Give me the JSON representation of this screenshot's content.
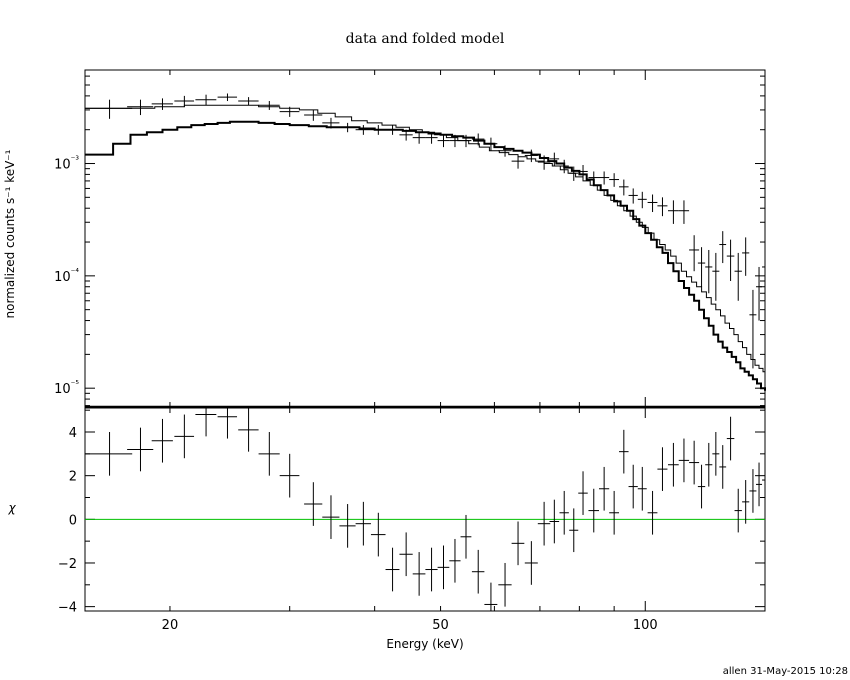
{
  "chart_data": [
    {
      "type": "scatter",
      "panel": "spectrum",
      "title": "data and folded model",
      "ylabel": "normalized counts s⁻¹ keV⁻¹",
      "yscale": "log",
      "xscale": "log",
      "xlim": [
        15,
        150
      ],
      "ylim": [
        6.8e-06,
        0.0068
      ],
      "ytick_labels": [
        "10⁻⁵",
        "10⁻⁴",
        "10⁻³"
      ],
      "ytick_values": [
        1e-05,
        0.0001,
        0.001
      ],
      "series": [
        {
          "style": "errorbars",
          "x": [
            16.3,
            18.1,
            19.5,
            21.0,
            22.6,
            24.3,
            26.1,
            28.0,
            30.0,
            32.5,
            34.5,
            36.5,
            38.5,
            40.5,
            42.5,
            44.5,
            46.5,
            48.5,
            50.5,
            52.5,
            54.5,
            56.8,
            59.3,
            62.2,
            65.0,
            68.0,
            71.0,
            73.5,
            76.0,
            78.5,
            81.0,
            84.0,
            87.0,
            90.0,
            93.0,
            96.0,
            99.0,
            102.5,
            106.0,
            110.0,
            114.0,
            118.0,
            121.0,
            124.0,
            127.0,
            130.0,
            133.5,
            137.0,
            140.5,
            144.0,
            147.0,
            150.0
          ],
          "y": [
            0.0031,
            0.0032,
            0.0034,
            0.0036,
            0.0037,
            0.0039,
            0.0036,
            0.0033,
            0.0029,
            0.0027,
            0.0023,
            0.0021,
            0.002,
            0.002,
            0.002,
            0.0018,
            0.0017,
            0.0017,
            0.0016,
            0.0016,
            0.0016,
            0.00165,
            0.0015,
            0.0013,
            0.00105,
            0.00118,
            0.00103,
            0.0011,
            0.00095,
            0.00082,
            0.00085,
            0.00075,
            0.00075,
            0.00072,
            0.00062,
            0.00052,
            0.00048,
            0.00045,
            0.00042,
            0.00038,
            0.00038,
            0.00017,
            0.00013,
            0.00012,
            0.00011,
            0.00019,
            0.00015,
            0.00011,
            0.00016,
            4.5e-05,
            8e-05,
            0.00012
          ],
          "xerr_low": [
            1.3,
            0.8,
            0.7,
            0.7,
            0.8,
            0.8,
            0.9,
            1.0,
            1.0,
            1.0,
            1.0,
            1.0,
            1.0,
            1.0,
            1.0,
            1.0,
            1.0,
            1.0,
            1.0,
            1.0,
            1.0,
            1.2,
            1.3,
            1.4,
            1.4,
            1.5,
            1.5,
            1.2,
            1.2,
            1.2,
            1.3,
            1.5,
            1.5,
            1.5,
            1.5,
            1.5,
            1.5,
            1.7,
            1.8,
            2.0,
            2.0,
            2.0,
            1.5,
            1.5,
            1.5,
            1.5,
            1.7,
            1.7,
            1.7,
            1.7,
            1.5,
            1.5
          ],
          "xerr_high": [
            1.3,
            0.8,
            0.7,
            0.7,
            0.8,
            0.8,
            0.9,
            1.0,
            1.0,
            1.0,
            1.0,
            1.0,
            1.0,
            1.0,
            1.0,
            1.0,
            1.0,
            1.0,
            1.0,
            1.0,
            1.0,
            1.2,
            1.3,
            1.4,
            1.4,
            1.5,
            1.5,
            1.2,
            1.2,
            1.2,
            1.3,
            1.5,
            1.5,
            1.5,
            1.5,
            1.5,
            1.5,
            1.7,
            1.8,
            2.0,
            2.0,
            2.0,
            1.5,
            1.5,
            1.5,
            1.5,
            1.7,
            1.7,
            1.7,
            1.7,
            1.5,
            1.5
          ],
          "yerr_low": [
            0.0006,
            0.0005,
            0.0004,
            0.0004,
            0.0004,
            0.0003,
            0.0003,
            0.0003,
            0.0003,
            0.0003,
            0.00025,
            0.0002,
            0.0002,
            0.0002,
            0.0002,
            0.0002,
            0.0002,
            0.0002,
            0.0002,
            0.0002,
            0.0002,
            0.0002,
            0.0002,
            0.00015,
            0.00015,
            0.00015,
            0.00015,
            0.00015,
            0.00013,
            0.00012,
            0.00012,
            0.0001,
            0.0001,
            0.0001,
            0.0001,
            8e-05,
            8e-05,
            8e-05,
            8e-05,
            9e-05,
            9e-05,
            6e-05,
            5e-05,
            5e-05,
            5e-05,
            6e-05,
            6e-05,
            5e-05,
            6e-05,
            3e-05,
            4e-05,
            5e-05
          ],
          "yerr_high": [
            0.0006,
            0.0005,
            0.0004,
            0.0004,
            0.0004,
            0.0003,
            0.0003,
            0.0003,
            0.0003,
            0.0003,
            0.00025,
            0.0002,
            0.0002,
            0.0002,
            0.0002,
            0.0002,
            0.0002,
            0.0002,
            0.0002,
            0.0002,
            0.0002,
            0.0002,
            0.0002,
            0.00015,
            0.00015,
            0.00015,
            0.00015,
            0.00015,
            0.00013,
            0.00012,
            0.00012,
            0.0001,
            0.0001,
            0.0001,
            0.0001,
            8e-05,
            8e-05,
            8e-05,
            8e-05,
            9e-05,
            9e-05,
            6e-05,
            5e-05,
            5e-05,
            5e-05,
            6e-05,
            6e-05,
            5e-05,
            6e-05,
            3e-05,
            4e-05,
            5e-05
          ]
        },
        {
          "style": "step",
          "x": [
            15.0,
            16.5,
            17.5,
            18.5,
            19.5,
            20.5,
            21.5,
            22.5,
            23.5,
            24.5,
            25.5,
            27.0,
            28.5,
            30.0,
            32.0,
            34.0,
            36.0,
            38.0,
            40.0,
            42.0,
            44.0,
            46.0,
            48.0,
            50.0,
            52.0,
            54.0,
            56.0,
            58.0,
            60.0,
            62.0,
            64.0,
            66.0,
            68.0,
            70.0,
            72.0,
            74.0,
            76.0,
            78.0,
            80.0,
            82.0,
            84.0,
            86.0,
            88.0,
            90.0,
            92.0,
            94.0,
            96.0,
            98.0,
            100.0,
            102.0,
            104.0,
            106.0,
            108.0,
            110.0,
            112.0,
            114.0,
            116.0,
            118.0,
            120.0,
            122.0,
            124.0,
            126.0,
            128.0,
            130.0,
            132.0,
            134.0,
            136.0,
            138.0,
            140.0,
            142.0,
            144.0,
            146.0,
            148.0,
            150.0
          ],
          "y": [
            0.0012,
            0.0015,
            0.0018,
            0.0019,
            0.002,
            0.0021,
            0.0022,
            0.00225,
            0.0023,
            0.00235,
            0.00235,
            0.0023,
            0.00225,
            0.0022,
            0.00215,
            0.0021,
            0.0021,
            0.00205,
            0.002,
            0.002,
            0.00195,
            0.0019,
            0.00185,
            0.0018,
            0.00175,
            0.0017,
            0.0016,
            0.0015,
            0.0014,
            0.00135,
            0.0013,
            0.00125,
            0.0012,
            0.00112,
            0.00105,
            0.001,
            0.00092,
            0.00086,
            0.0008,
            0.00072,
            0.00064,
            0.00058,
            0.00052,
            0.00046,
            0.00042,
            0.00038,
            0.00032,
            0.00028,
            0.00024,
            0.00021,
            0.00018,
            0.00016,
            0.00013,
            0.00011,
            9e-05,
            7.8e-05,
            6.8e-05,
            6e-05,
            5e-05,
            4.2e-05,
            3.6e-05,
            3e-05,
            2.6e-05,
            2.3e-05,
            2.1e-05,
            1.9e-05,
            1.7e-05,
            1.5e-05,
            1.4e-05,
            1.3e-05,
            1.2e-05,
            1.1e-05,
            1e-05,
            9.5e-06
          ]
        },
        {
          "style": "step-thin",
          "x": [
            15.0,
            17.0,
            19.0,
            21.0,
            23.0,
            25.0,
            27.0,
            29.0,
            31.0,
            33.0,
            35.0,
            37.0,
            39.0,
            41.0,
            43.0,
            45.0,
            47.0,
            49.0,
            51.0,
            53.0,
            55.0,
            57.0,
            59.0,
            61.0,
            63.0,
            65.0,
            67.0,
            69.0,
            71.0,
            73.0,
            75.0,
            77.0,
            79.0,
            81.0,
            83.0,
            85.0,
            87.0,
            89.0,
            91.0,
            93.0,
            95.0,
            97.0,
            99.0,
            101.0,
            103.0,
            105.0,
            107.0,
            109.0,
            111.0,
            113.0,
            115.0,
            117.0,
            119.0,
            121.0,
            123.0,
            125.0,
            127.0,
            129.0,
            131.0,
            133.0,
            135.0,
            137.0,
            139.0,
            141.0,
            143.0,
            145.0,
            147.0,
            149.0,
            150.0
          ],
          "y": [
            0.0031,
            0.0031,
            0.0032,
            0.0033,
            0.0033,
            0.0033,
            0.0032,
            0.0031,
            0.003,
            0.0028,
            0.0026,
            0.0024,
            0.0023,
            0.0022,
            0.0021,
            0.002,
            0.0019,
            0.0018,
            0.0017,
            0.0016,
            0.0015,
            0.0014,
            0.0013,
            0.00125,
            0.0012,
            0.00115,
            0.0011,
            0.00105,
            0.001,
            0.00095,
            0.00088,
            0.00082,
            0.00076,
            0.0007,
            0.00064,
            0.00058,
            0.00052,
            0.00047,
            0.00042,
            0.00038,
            0.00034,
            0.0003,
            0.00027,
            0.00024,
            0.00021,
            0.00019,
            0.00017,
            0.00015,
            0.00013,
            0.00011,
            9.8e-05,
            8.8e-05,
            8e-05,
            7.2e-05,
            6.4e-05,
            5.6e-05,
            5e-05,
            4.4e-05,
            3.8e-05,
            3.4e-05,
            3e-05,
            2.6e-05,
            2.3e-05,
            2e-05,
            1.8e-05,
            1.6e-05,
            1.5e-05,
            1.4e-05,
            1.3e-05
          ]
        }
      ]
    },
    {
      "type": "scatter",
      "panel": "residuals",
      "xlabel": "Energy (keV)",
      "ylabel": "χ",
      "xscale": "log",
      "xlim": [
        15,
        150
      ],
      "ylim": [
        -4.2,
        5.1
      ],
      "xtick_labels": [
        "20",
        "50",
        "100"
      ],
      "xtick_values": [
        20,
        50,
        100
      ],
      "ytick_labels": [
        "−4",
        "−2",
        "0",
        "2",
        "4"
      ],
      "ytick_values": [
        -4,
        -2,
        0,
        2,
        4
      ],
      "zero_line_color": "#00c000",
      "series": [
        {
          "style": "errorbars",
          "x": [
            16.3,
            18.1,
            19.5,
            21.0,
            22.6,
            24.3,
            26.1,
            28.0,
            30.0,
            32.5,
            34.5,
            36.5,
            38.5,
            40.5,
            42.5,
            44.5,
            46.5,
            48.5,
            50.5,
            52.5,
            54.5,
            56.8,
            59.3,
            62.2,
            65.0,
            68.0,
            71.0,
            73.5,
            76.0,
            78.5,
            81.0,
            84.0,
            87.0,
            90.0,
            93.0,
            96.0,
            99.0,
            102.5,
            106.0,
            110.0,
            114.0,
            118.0,
            121.0,
            124.0,
            127.0,
            130.0,
            133.5,
            137.0,
            140.5,
            144.0,
            147.0,
            150.0
          ],
          "y": [
            3.0,
            3.2,
            3.6,
            3.8,
            4.8,
            4.7,
            4.1,
            3.0,
            2.0,
            0.7,
            0.1,
            -0.3,
            -0.2,
            -0.7,
            -2.3,
            -1.6,
            -2.5,
            -2.3,
            -2.2,
            -1.9,
            -0.8,
            -2.4,
            -3.9,
            -3.0,
            -1.1,
            -2.0,
            -0.2,
            -0.1,
            0.3,
            -0.5,
            1.2,
            0.4,
            1.4,
            0.3,
            3.1,
            1.5,
            1.4,
            0.3,
            2.3,
            2.5,
            2.7,
            2.6,
            1.5,
            2.5,
            3.0,
            2.4,
            3.7,
            0.4,
            0.8,
            1.3,
            1.6,
            1.8
          ],
          "xerr_low": [
            1.3,
            0.8,
            0.7,
            0.7,
            0.8,
            0.8,
            0.9,
            1.0,
            1.0,
            1.0,
            1.0,
            1.0,
            1.0,
            1.0,
            1.0,
            1.0,
            1.0,
            1.0,
            1.0,
            1.0,
            1.0,
            1.2,
            1.3,
            1.4,
            1.4,
            1.5,
            1.5,
            1.2,
            1.2,
            1.2,
            1.3,
            1.5,
            1.5,
            1.5,
            1.5,
            1.5,
            1.5,
            1.7,
            1.8,
            2.0,
            2.0,
            2.0,
            1.5,
            1.5,
            1.5,
            1.5,
            1.7,
            1.7,
            1.7,
            1.7,
            1.5,
            1.5
          ],
          "xerr_high": [
            1.3,
            0.8,
            0.7,
            0.7,
            0.8,
            0.8,
            0.9,
            1.0,
            1.0,
            1.0,
            1.0,
            1.0,
            1.0,
            1.0,
            1.0,
            1.0,
            1.0,
            1.0,
            1.0,
            1.0,
            1.0,
            1.2,
            1.3,
            1.4,
            1.4,
            1.5,
            1.5,
            1.2,
            1.2,
            1.2,
            1.3,
            1.5,
            1.5,
            1.5,
            1.5,
            1.5,
            1.5,
            1.7,
            1.8,
            2.0,
            2.0,
            2.0,
            1.5,
            1.5,
            1.5,
            1.5,
            1.7,
            1.7,
            1.7,
            1.7,
            1.5,
            1.5
          ],
          "yerr": [
            1.0,
            1.0,
            1.0,
            1.0,
            1.0,
            1.0,
            1.0,
            1.0,
            1.0,
            1.0,
            1.0,
            1.0,
            1.0,
            1.0,
            1.0,
            1.0,
            1.0,
            1.0,
            1.0,
            1.0,
            1.0,
            1.0,
            1.0,
            1.0,
            1.0,
            1.0,
            1.0,
            1.0,
            1.0,
            1.0,
            1.0,
            1.0,
            1.0,
            1.0,
            1.0,
            1.0,
            1.0,
            1.0,
            1.0,
            1.0,
            1.0,
            1.0,
            1.0,
            1.0,
            1.0,
            1.0,
            1.0,
            1.0,
            1.0,
            1.0,
            1.0,
            1.0
          ]
        }
      ]
    }
  ],
  "footer": "allen 31-May-2015 10:28"
}
